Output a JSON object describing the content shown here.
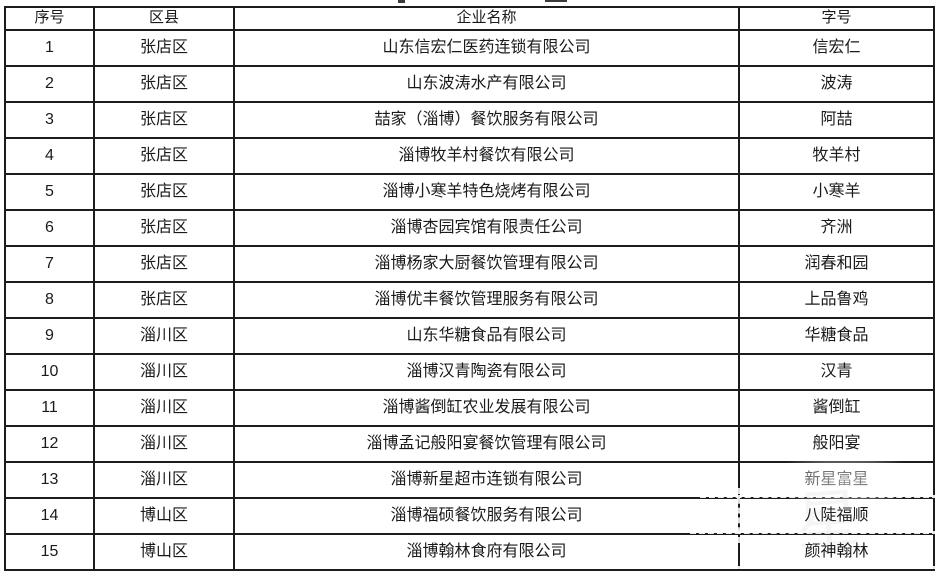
{
  "table": {
    "headers": [
      "序号",
      "区县",
      "企业名称",
      "字号"
    ],
    "column_names": [
      "row-number",
      "district",
      "company-name",
      "trade-name"
    ],
    "rows": [
      [
        "1",
        "张店区",
        "山东信宏仁医药连锁有限公司",
        "信宏仁"
      ],
      [
        "2",
        "张店区",
        "山东波涛水产有限公司",
        "波涛"
      ],
      [
        "3",
        "张店区",
        "喆家（淄博）餐饮服务有限公司",
        "阿喆"
      ],
      [
        "4",
        "张店区",
        "淄博牧羊村餐饮有限公司",
        "牧羊村"
      ],
      [
        "5",
        "张店区",
        "淄博小寒羊特色烧烤有限公司",
        "小寒羊"
      ],
      [
        "6",
        "张店区",
        "淄博杏园宾馆有限责任公司",
        "齐洲"
      ],
      [
        "7",
        "张店区",
        "淄博杨家大厨餐饮管理有限公司",
        "润春和园"
      ],
      [
        "8",
        "张店区",
        "淄博优丰餐饮管理服务有限公司",
        "上品鲁鸡"
      ],
      [
        "9",
        "淄川区",
        "山东华糖食品有限公司",
        "华糖食品"
      ],
      [
        "10",
        "淄川区",
        "淄博汉青陶瓷有限公司",
        "汉青"
      ],
      [
        "11",
        "淄川区",
        "淄博酱倒缸农业发展有限公司",
        "酱倒缸"
      ],
      [
        "12",
        "淄川区",
        "淄博孟记般阳宴餐饮管理有限公司",
        "般阳宴"
      ],
      [
        "13",
        "淄川区",
        "淄博新星超市连锁有限公司",
        "新星富星"
      ],
      [
        "14",
        "博山区",
        "淄博福硕餐饮服务有限公司",
        "八陡福顺"
      ],
      [
        "15",
        "博山区",
        "淄博翰林食府有限公司",
        "颜神翰林"
      ]
    ]
  },
  "watermark": {
    "ghost_text": "星"
  },
  "colors": {
    "border": "#1c1c1c",
    "text": "#1a1a1a",
    "background": "#ffffff"
  }
}
